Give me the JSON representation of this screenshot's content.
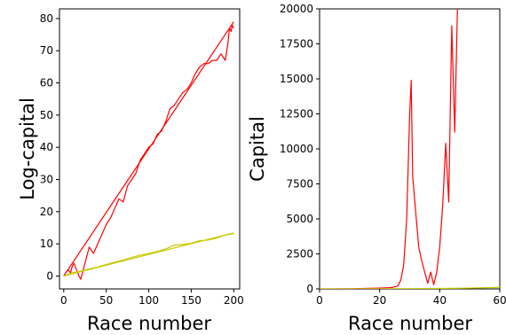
{
  "chart_data": [
    {
      "type": "line",
      "xlabel": "Race number",
      "ylabel": "Log-capital",
      "xlim": [
        -5,
        207
      ],
      "ylim": [
        -4,
        83
      ],
      "xticks": [
        0,
        50,
        100,
        150,
        200
      ],
      "yticks": [
        0,
        10,
        20,
        30,
        40,
        50,
        60,
        70,
        80
      ],
      "grid": false,
      "series": [
        {
          "color": "#ff0000",
          "x": [
            0,
            5,
            8,
            10,
            12,
            15,
            18,
            20,
            25,
            30,
            35,
            40,
            45,
            50,
            55,
            60,
            65,
            70,
            75,
            80,
            85,
            90,
            95,
            100,
            105,
            110,
            115,
            120,
            125,
            130,
            135,
            140,
            145,
            150,
            155,
            160,
            165,
            170,
            175,
            180,
            185,
            190,
            193,
            195,
            197,
            198,
            200
          ],
          "values": [
            0,
            2,
            1,
            3,
            4,
            2,
            0,
            -1,
            4,
            9,
            7,
            10,
            13,
            16,
            18,
            21,
            24,
            23,
            28,
            30,
            32,
            36,
            38,
            40,
            41,
            44,
            45,
            48,
            52,
            53,
            55,
            57,
            58,
            60,
            63,
            65,
            66,
            66,
            67,
            67,
            69,
            67,
            72,
            77,
            76,
            78,
            77
          ]
        },
        {
          "color": "#ff0000",
          "x": [
            0,
            200
          ],
          "values": [
            0,
            79
          ]
        },
        {
          "color": "#c8c800",
          "x": [
            0,
            10,
            20,
            30,
            40,
            50,
            60,
            70,
            80,
            90,
            100,
            110,
            120,
            130,
            140,
            150,
            160,
            170,
            180,
            190,
            200
          ],
          "values": [
            0,
            1,
            1.5,
            2.2,
            2.8,
            3.6,
            4.3,
            5,
            5.8,
            6.5,
            7,
            7.6,
            8.4,
            9.6,
            9.8,
            10.2,
            11,
            11.2,
            11.8,
            12.7,
            13.2
          ]
        },
        {
          "color": "#c8c800",
          "x": [
            0,
            200
          ],
          "values": [
            0,
            13.4
          ]
        }
      ]
    },
    {
      "type": "line",
      "xlabel": "Race number",
      "ylabel": "Capital",
      "xlim": [
        0,
        60
      ],
      "ylim": [
        0,
        20000
      ],
      "xticks": [
        0,
        20,
        40,
        60
      ],
      "yticks": [
        0,
        2500,
        5000,
        7500,
        10000,
        12500,
        15000,
        17500,
        20000
      ],
      "grid": false,
      "series": [
        {
          "color": "#ff0000",
          "x": [
            0,
            5,
            10,
            15,
            20,
            24,
            26,
            27,
            28,
            29,
            30,
            30.5,
            31,
            32,
            33,
            34,
            35,
            36,
            37,
            38,
            39,
            40,
            41,
            42,
            43,
            44,
            45,
            46
          ],
          "values": [
            1,
            5,
            10,
            30,
            60,
            100,
            200,
            600,
            1700,
            5000,
            12500,
            14900,
            8000,
            5500,
            3000,
            2000,
            1200,
            400,
            1200,
            300,
            1200,
            3000,
            6000,
            10400,
            6200,
            18800,
            11200,
            21000
          ]
        },
        {
          "color": "#c8c800",
          "x": [
            0,
            10,
            20,
            30,
            40,
            50,
            60
          ],
          "values": [
            1,
            3,
            7,
            15,
            30,
            60,
            110
          ]
        }
      ]
    }
  ]
}
